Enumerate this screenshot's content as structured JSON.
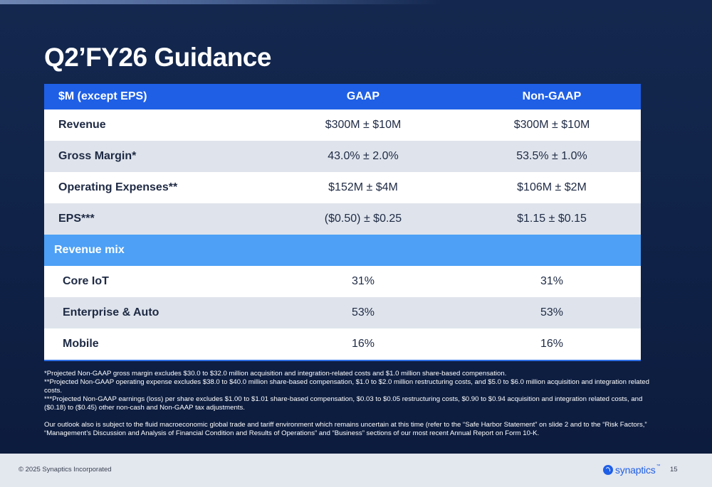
{
  "slide": {
    "title": "Q2’FY26 Guidance",
    "page_number": "15"
  },
  "table": {
    "headers": [
      "$M (except EPS)",
      "GAAP",
      "Non-GAAP"
    ],
    "rows": [
      {
        "label": "Revenue",
        "gaap": "$300M ± $10M",
        "non_gaap": "$300M ± $10M"
      },
      {
        "label": "Gross Margin*",
        "gaap": "43.0% ± 2.0%",
        "non_gaap": "53.5% ± 1.0%"
      },
      {
        "label": "Operating Expenses**",
        "gaap": "$152M ± $4M",
        "non_gaap": "$106M ± $2M"
      },
      {
        "label": "EPS***",
        "gaap": "($0.50) ± $0.25",
        "non_gaap": "$1.15 ± $0.15"
      }
    ],
    "revenue_mix": {
      "label": "Revenue mix",
      "rows": [
        {
          "label": "Core IoT",
          "gaap": "31%",
          "non_gaap": "31%"
        },
        {
          "label": "Enterprise & Auto",
          "gaap": "53%",
          "non_gaap": "53%"
        },
        {
          "label": "Mobile",
          "gaap": "16%",
          "non_gaap": "16%"
        }
      ]
    }
  },
  "footnotes": [
    "*Projected Non-GAAP gross margin excludes $30.0 to $32.0 million acquisition and integration-related costs and $1.0 million share-based compensation.",
    "**Projected Non-GAAP operating expense excludes $38.0 to $40.0 million share-based compensation, $1.0 to $2.0 million restructuring costs, and $5.0 to $6.0 million acquisition and integration related costs.",
    "***Projected Non-GAAP earnings (loss) per share excludes $1.00 to $1.01 share-based compensation, $0.03 to $0.05 restructuring costs, $0.90 to $0.94 acquisition and integration related costs, and ($0.18) to ($0.45) other non-cash and Non-GAAP tax adjustments."
  ],
  "disclaimer": "Our outlook also is subject to the fluid macroeconomic global trade and tariff environment which remains uncertain at this time (refer to the “Safe Harbor Statement” on slide 2 and to the “Risk Factors,” “Management’s Discussion and Analysis of Financial Condition and Results of Operations” and “Business” sections of our most recent Annual Report on Form 10-K.",
  "footer": {
    "copyright": "© 2025 Synaptics Incorporated",
    "logo_text": "synaptics",
    "logo_tm": "™",
    "logo_icon": "synaptics-logo-mark"
  },
  "colors": {
    "background": "#0f2146",
    "header_blue": "#1f5fe6",
    "mix_blue": "#4da0f5",
    "row_gray": "#dfe4ec",
    "footer_bg": "#e3e7ee"
  }
}
